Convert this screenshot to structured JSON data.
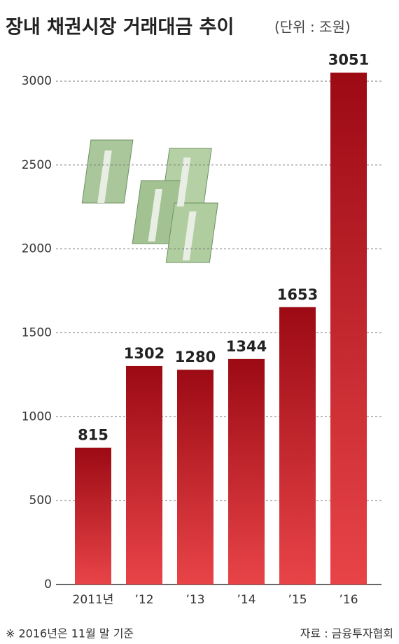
{
  "chart_data": {
    "type": "bar",
    "title": "장내 채권시장 거래대금 추이",
    "subtitle": "(단위 : 조원)",
    "categories": [
      "2011년",
      "’12",
      "’13",
      "’14",
      "’15",
      "’16"
    ],
    "values": [
      815,
      1302,
      1280,
      1344,
      1653,
      3051
    ],
    "color": "#b5141e",
    "ylim": [
      0,
      3200
    ],
    "yticks": [
      0,
      500,
      1000,
      1500,
      2000,
      2500,
      3000
    ],
    "grid": true,
    "note": "※ 2016년은 11월 말 기준",
    "source": "자료 : 금융투자협회"
  }
}
